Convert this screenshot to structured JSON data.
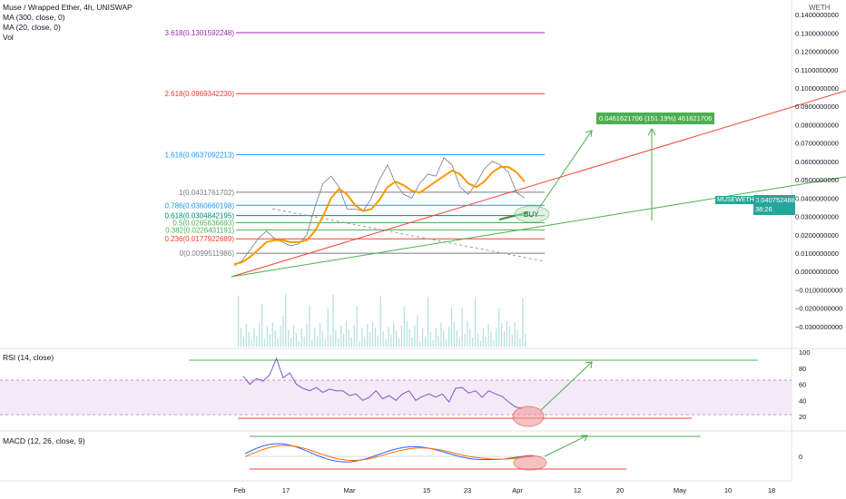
{
  "header": {
    "title": "Muse / Wrapped Ether, 4h, UNISWAP",
    "indicators": [
      "MA (300, close, 0)",
      "MA (20, close, 0)",
      "Vol"
    ],
    "corner": "WETH"
  },
  "price_tag": {
    "symbol": "MUSEWETH",
    "price": "0.0407524887",
    "countdown": "38:26"
  },
  "target_label": "0.0461621706 (151.19%) 461621706",
  "buy_label": "BUY",
  "rsi": {
    "label": "RSI (14, close)"
  },
  "macd": {
    "label": "MACD (12, 26, close, 9)"
  },
  "chart_data": {
    "type": "line",
    "ylim": [
      -0.035,
      0.145
    ],
    "yticks": [
      "0.1400000000",
      "0.1300000000",
      "0.1200000000",
      "0.1100000000",
      "0.1000000000",
      "0.0900000000",
      "0.0800000000",
      "0.0700000000",
      "0.0600000000",
      "0.0500000000",
      "0.0400000000",
      "0.0300000000",
      "0.0200000000",
      "0.0100000000",
      "0.0000000000",
      "−0.0100000000",
      "−0.0200000000",
      "−0.0300000000"
    ],
    "xticks": [
      "Feb",
      "17",
      "Mar",
      "15",
      "23",
      "Apr",
      "12",
      "20",
      "May",
      "10",
      "18"
    ],
    "fib_levels": [
      {
        "ratio": "3.618",
        "value": "0.1301592248",
        "color": "#9c27b0"
      },
      {
        "ratio": "2.618",
        "value": "0.0969342230",
        "color": "#e53935"
      },
      {
        "ratio": "1.618",
        "value": "0.0637092213",
        "color": "#2196f3"
      },
      {
        "ratio": "1",
        "value": "0.0431761702",
        "color": "#787b86"
      },
      {
        "ratio": "0.786",
        "value": "0.0360660198",
        "color": "#2196f3"
      },
      {
        "ratio": "0.618",
        "value": "0.0304842195",
        "color": "#00897b"
      },
      {
        "ratio": "0.5",
        "value": "0.0265636693",
        "color": "#4caf50"
      },
      {
        "ratio": "0.382",
        "value": "0.0226431191",
        "color": "#4caf50"
      },
      {
        "ratio": "0.236",
        "value": "0.0177922689",
        "color": "#f44336"
      },
      {
        "ratio": "0",
        "value": "0.0099511986",
        "color": "#787b86"
      }
    ],
    "price_series": [
      0.003,
      0.006,
      0.012,
      0.018,
      0.022,
      0.018,
      0.016,
      0.014,
      0.015,
      0.02,
      0.035,
      0.048,
      0.052,
      0.046,
      0.034,
      0.034,
      0.033,
      0.04,
      0.05,
      0.058,
      0.048,
      0.042,
      0.04,
      0.048,
      0.053,
      0.052,
      0.062,
      0.058,
      0.046,
      0.042,
      0.048,
      0.056,
      0.06,
      0.058,
      0.054,
      0.043,
      0.04
    ],
    "ma20_series": [
      0.004,
      0.005,
      0.008,
      0.012,
      0.016,
      0.017,
      0.017,
      0.016,
      0.016,
      0.017,
      0.022,
      0.03,
      0.04,
      0.045,
      0.042,
      0.036,
      0.033,
      0.034,
      0.039,
      0.046,
      0.049,
      0.047,
      0.044,
      0.043,
      0.046,
      0.049,
      0.052,
      0.055,
      0.053,
      0.048,
      0.046,
      0.049,
      0.054,
      0.057,
      0.057,
      0.054,
      0.049
    ],
    "rsi_ylim": [
      10,
      100
    ],
    "rsi_yticks": [
      "100",
      "80",
      "60",
      "40",
      "20"
    ],
    "rsi_series": [
      70,
      60,
      67,
      64,
      72,
      92,
      68,
      74,
      60,
      55,
      52,
      56,
      50,
      54,
      52,
      52,
      46,
      48,
      40,
      44,
      52,
      42,
      46,
      40,
      48,
      52,
      40,
      45,
      48,
      44,
      48,
      38,
      55,
      56,
      49,
      52,
      44,
      52,
      48,
      45,
      38,
      32,
      30
    ],
    "rsi_band": [
      30,
      70
    ],
    "macd_yticks": [
      "0"
    ]
  }
}
